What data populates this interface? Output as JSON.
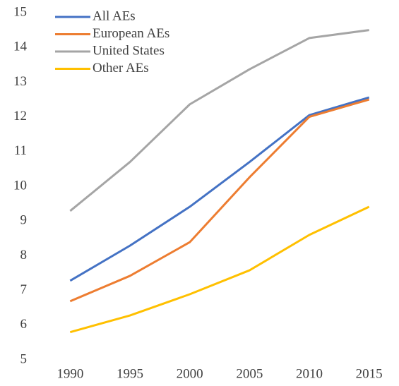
{
  "chart_data": {
    "type": "line",
    "categories": [
      "1990",
      "1995",
      "2000",
      "2005",
      "2010",
      "2015"
    ],
    "series": [
      {
        "name": "All AEs",
        "color": "#4472c4",
        "values": [
          7.28,
          8.29,
          9.41,
          10.7,
          12.05,
          12.56
        ]
      },
      {
        "name": "European AEs",
        "color": "#ed7d31",
        "values": [
          6.69,
          7.42,
          8.39,
          10.26,
          12.0,
          12.5
        ]
      },
      {
        "name": "United States",
        "color": "#a5a5a5",
        "values": [
          9.29,
          10.7,
          12.36,
          13.37,
          14.27,
          14.5
        ]
      },
      {
        "name": "Other AEs",
        "color": "#ffc000",
        "values": [
          5.8,
          6.28,
          6.89,
          7.58,
          8.6,
          9.41
        ]
      }
    ],
    "ylim": [
      5,
      15
    ],
    "yticks": [
      5,
      6,
      7,
      8,
      9,
      10,
      11,
      12,
      13,
      14,
      15
    ],
    "grid": false,
    "legend": "top-left"
  }
}
